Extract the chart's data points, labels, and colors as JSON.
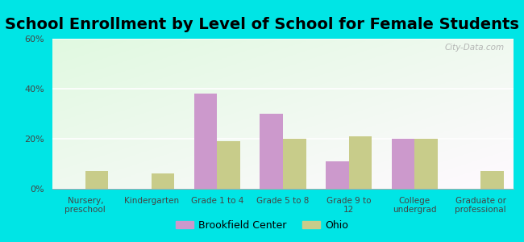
{
  "title": "School Enrollment by Level of School for Female Students",
  "categories": [
    "Nursery,\npreschool",
    "Kindergarten",
    "Grade 1 to 4",
    "Grade 5 to 8",
    "Grade 9 to\n12",
    "College\nundergrad",
    "Graduate or\nprofessional"
  ],
  "brookfield_values": [
    0,
    0,
    38,
    30,
    11,
    20,
    0
  ],
  "ohio_values": [
    7,
    6,
    19,
    20,
    21,
    20,
    7
  ],
  "brookfield_color": "#cc99cc",
  "ohio_color": "#c8cc8a",
  "background_color": "#00e5e5",
  "ylim": [
    0,
    60
  ],
  "yticks": [
    0,
    20,
    40,
    60
  ],
  "ytick_labels": [
    "0%",
    "20%",
    "40%",
    "60%"
  ],
  "legend_brookfield": "Brookfield Center",
  "legend_ohio": "Ohio",
  "title_fontsize": 14,
  "bar_width": 0.35,
  "watermark": "City-Data.com"
}
